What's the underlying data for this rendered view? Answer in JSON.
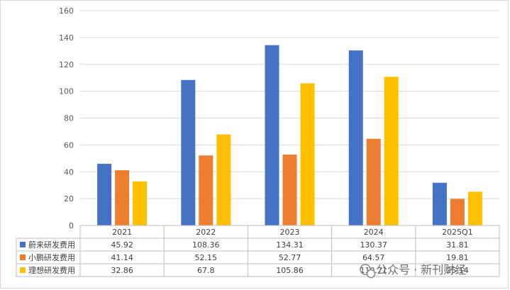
{
  "chart_data": {
    "type": "bar",
    "categories": [
      "2021",
      "2022",
      "2023",
      "2024",
      "2025Q1"
    ],
    "series": [
      {
        "name": "蔚来研发费用",
        "color": "#4472C4",
        "values": [
          45.92,
          108.36,
          134.31,
          130.37,
          31.81
        ],
        "labels": [
          "45.92",
          "108.36",
          "134.31",
          "130.37",
          "31.81"
        ]
      },
      {
        "name": "小鹏研发费用",
        "color": "#ED7D31",
        "values": [
          41.14,
          52.15,
          52.77,
          64.57,
          19.81
        ],
        "labels": [
          "41.14",
          "52.15",
          "52.77",
          "64.57",
          "19.81"
        ]
      },
      {
        "name": "理想研发费用",
        "color": "#FFC000",
        "values": [
          32.86,
          67.8,
          105.86,
          110.71,
          25.14
        ],
        "labels": [
          "32.86",
          "67.8",
          "105.86",
          "110.71",
          "25.14"
        ]
      }
    ],
    "ylim": [
      0,
      160
    ],
    "yticks": [
      "0",
      "20",
      "40",
      "60",
      "80",
      "100",
      "120",
      "140",
      "160"
    ],
    "grid": true,
    "legend": "data-table",
    "data_table": true
  },
  "watermark": {
    "text": "公众号 · 新刊财经",
    "icon": "wechat-icon"
  }
}
